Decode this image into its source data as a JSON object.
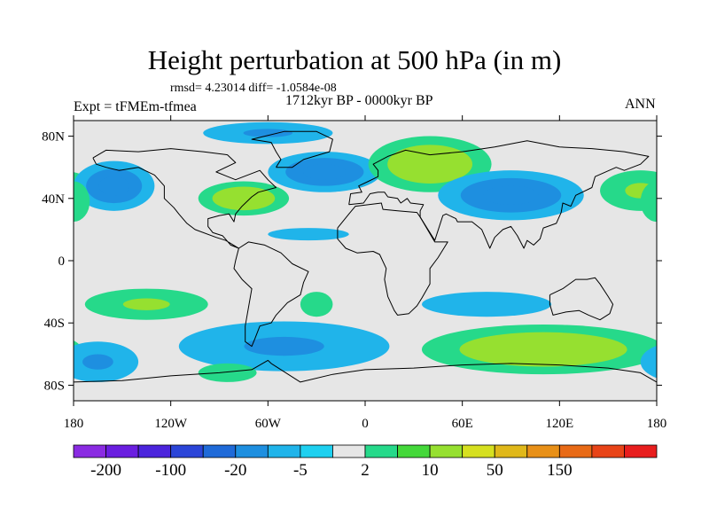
{
  "page": {
    "title": "Height perturbation at 500 hPa (in m)",
    "stats": "rmsd= 4.23014 diff= -1.0584e-08",
    "period": "1712kyr BP - 0000kyr BP",
    "experiment": "Expt = tFMEm-tfmea",
    "season": "ANN"
  },
  "chart_data": {
    "type": "heatmap",
    "title": "Height perturbation at 500 hPa (in m)",
    "subtitle": "1712kyr BP - 0000kyr BP",
    "annotations": [
      "rmsd= 4.23014 diff= -1.0584e-08",
      "Expt = tFMEm-tfmea",
      "ANN"
    ],
    "xlabel": "",
    "ylabel": "",
    "x_range": [
      -180,
      180
    ],
    "y_range": [
      -90,
      90
    ],
    "x_ticks": [
      {
        "value": -180,
        "label": "180"
      },
      {
        "value": -120,
        "label": "120W"
      },
      {
        "value": -60,
        "label": "60W"
      },
      {
        "value": 0,
        "label": "0"
      },
      {
        "value": 60,
        "label": "60E"
      },
      {
        "value": 120,
        "label": "120E"
      },
      {
        "value": 180,
        "label": "180"
      }
    ],
    "y_ticks": [
      {
        "value": 80,
        "label": "80N"
      },
      {
        "value": 40,
        "label": "40N"
      },
      {
        "value": 0,
        "label": "0"
      },
      {
        "value": -40,
        "label": "40S"
      },
      {
        "value": -80,
        "label": "80S"
      }
    ],
    "colorbar": {
      "colors": [
        "#8a2be2",
        "#6a1ee0",
        "#4b24dc",
        "#2b45d8",
        "#1f6ad8",
        "#1e8fe0",
        "#20b4ea",
        "#1ed0f0",
        "#e6e6e6",
        "#26d98a",
        "#44d83a",
        "#96e030",
        "#d6e020",
        "#e0b81a",
        "#e89018",
        "#e86a16",
        "#e84418",
        "#e81e1e"
      ],
      "labels": [
        {
          "boundary": 1,
          "text": "-200"
        },
        {
          "boundary": 3,
          "text": "-100"
        },
        {
          "boundary": 5,
          "text": "-20"
        },
        {
          "boundary": 7,
          "text": "-5"
        },
        {
          "boundary": 9,
          "text": "2"
        },
        {
          "boundary": 11,
          "text": "10"
        },
        {
          "boundary": 13,
          "text": "50"
        },
        {
          "boundary": 15,
          "text": "150"
        }
      ]
    },
    "background_color": "#e6e6e6",
    "anomalies": [
      {
        "name": "north-atlantic-low",
        "lon": -25,
        "lat": 57,
        "rlon": 35,
        "rlat": 13,
        "levels": [
          -2,
          -5,
          -5
        ]
      },
      {
        "name": "europe-high",
        "lon": 40,
        "lat": 62,
        "rlon": 38,
        "rlat": 18,
        "levels": [
          2,
          10,
          10
        ]
      },
      {
        "name": "asia-low",
        "lon": 90,
        "lat": 42,
        "rlon": 45,
        "rlat": 16,
        "levels": [
          -2,
          -5,
          -5
        ]
      },
      {
        "name": "north-pacific-high",
        "lon": 170,
        "lat": 45,
        "rlon": 25,
        "rlat": 13,
        "levels": [
          2,
          10
        ]
      },
      {
        "name": "western-pacific-low",
        "lon": -155,
        "lat": 48,
        "rlon": 25,
        "rlat": 16,
        "levels": [
          -2,
          -5,
          -5
        ]
      },
      {
        "name": "north-america-high",
        "lon": -75,
        "lat": 40,
        "rlon": 28,
        "rlat": 11,
        "levels": [
          2,
          10,
          10
        ]
      },
      {
        "name": "arctic-low",
        "lon": -60,
        "lat": 82,
        "rlon": 40,
        "rlat": 7,
        "levels": [
          -2,
          -5
        ]
      },
      {
        "name": "south-pacific-high",
        "lon": -135,
        "lat": -28,
        "rlon": 38,
        "rlat": 10,
        "levels": [
          2,
          10
        ]
      },
      {
        "name": "southern-ocean-low",
        "lon": -50,
        "lat": -55,
        "rlon": 65,
        "rlat": 16,
        "levels": [
          -2,
          -5
        ]
      },
      {
        "name": "southern-ocean-high",
        "lon": 110,
        "lat": -57,
        "rlon": 75,
        "rlat": 16,
        "levels": [
          2,
          10,
          10
        ]
      },
      {
        "name": "far-south-pacific-low",
        "lon": -165,
        "lat": -65,
        "rlon": 25,
        "rlat": 13,
        "levels": [
          -2,
          -5
        ]
      },
      {
        "name": "south-america-high",
        "lon": -85,
        "lat": -72,
        "rlon": 18,
        "rlat": 6,
        "levels": [
          2
        ]
      },
      {
        "name": "south-atlantic-high",
        "lon": -30,
        "lat": -28,
        "rlon": 10,
        "rlat": 8,
        "levels": [
          2
        ]
      },
      {
        "name": "indian-ocean-low",
        "lon": 75,
        "lat": -28,
        "rlon": 40,
        "rlat": 8,
        "levels": [
          -2
        ]
      },
      {
        "name": "tropical-band-low",
        "lon": -35,
        "lat": 17,
        "rlon": 25,
        "rlat": 4,
        "levels": [
          -2
        ]
      },
      {
        "name": "west-atlantic-high",
        "lon": -180,
        "lat": 38,
        "rlon": 10,
        "rlat": 13,
        "levels": [
          2
        ]
      }
    ]
  }
}
